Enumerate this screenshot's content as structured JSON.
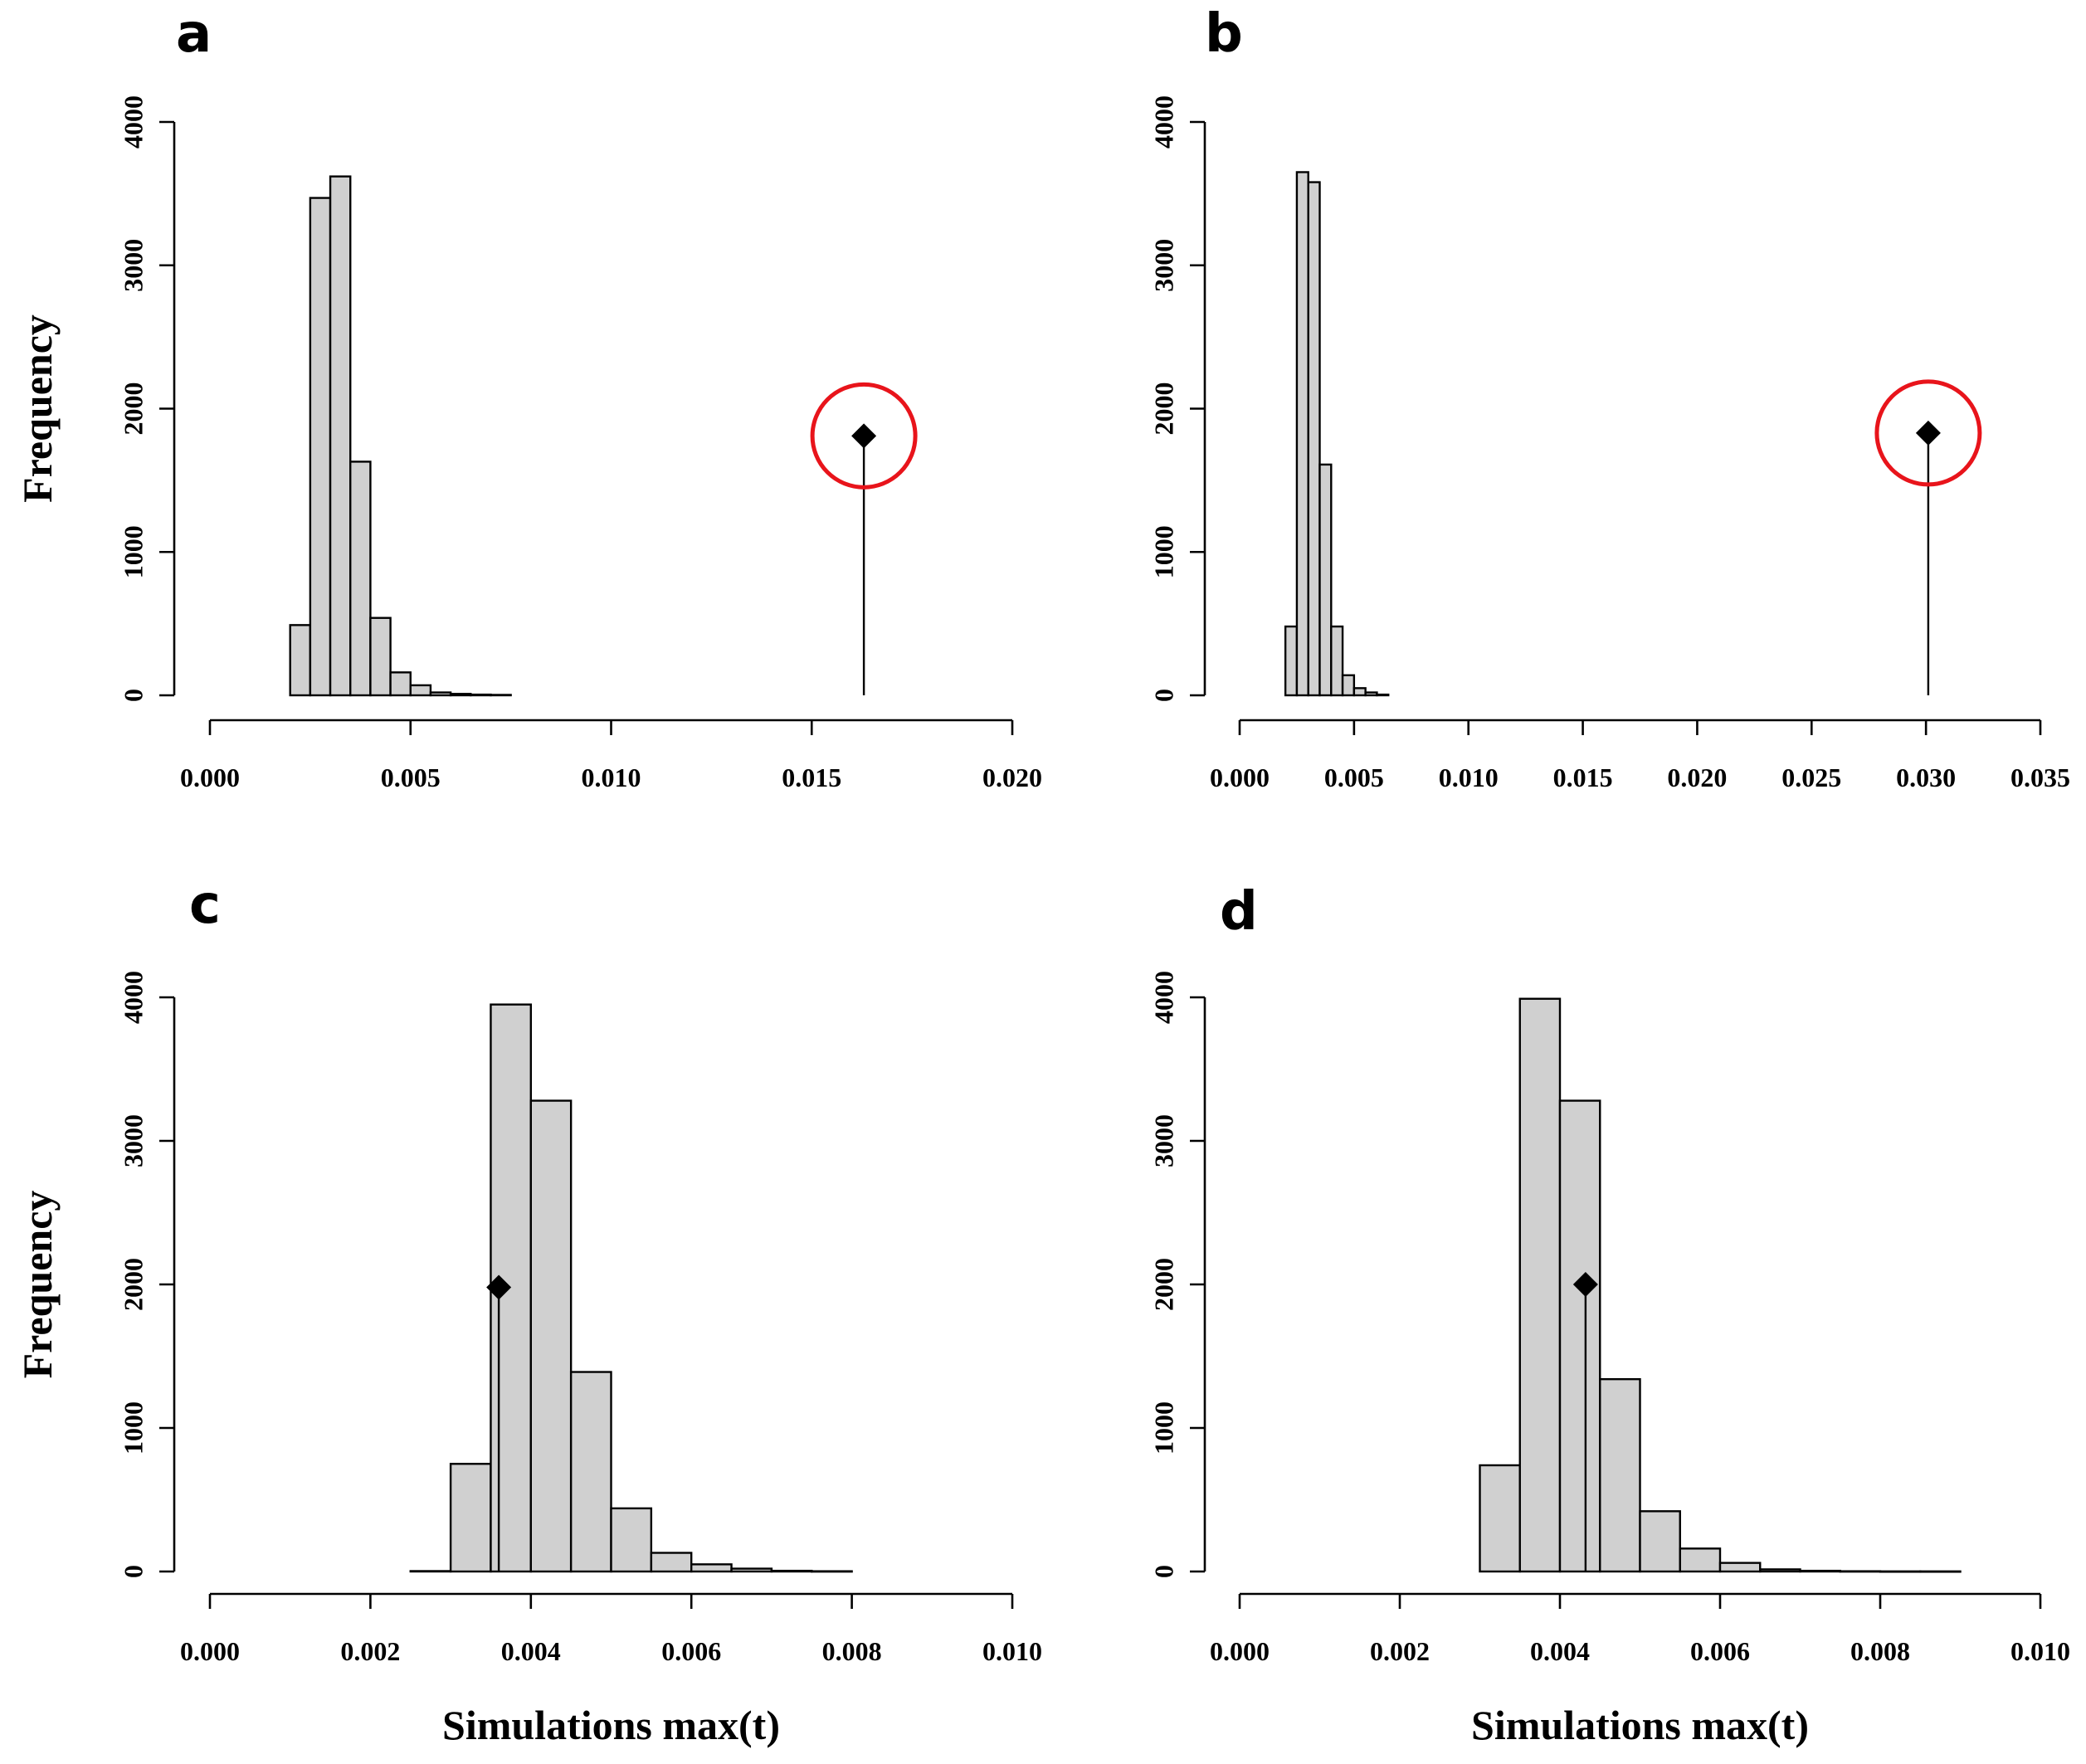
{
  "chart_data": [
    {
      "id": "a",
      "type": "bar",
      "panel_label": "a",
      "ylabel": "Frequency",
      "xlabel": "",
      "xlim": [
        0,
        0.02
      ],
      "ylim": [
        0,
        4000
      ],
      "xticks": [
        0,
        0.005,
        0.01,
        0.015,
        0.02
      ],
      "xtick_labels": [
        "0.000",
        "0.005",
        "0.010",
        "0.015",
        "0.020"
      ],
      "yticks": [
        0,
        1000,
        2000,
        3000,
        4000
      ],
      "ytick_labels": [
        "0",
        "1000",
        "2000",
        "3000",
        "4000"
      ],
      "bin_width": 0.0005,
      "bin_starts": [
        0.002,
        0.0025,
        0.003,
        0.0035,
        0.004,
        0.0045,
        0.005,
        0.0055,
        0.006,
        0.0065,
        0.007
      ],
      "values": [
        490,
        3470,
        3620,
        1630,
        540,
        160,
        70,
        20,
        10,
        5,
        3
      ],
      "observed": {
        "x": 0.0163,
        "y": 1810,
        "highlighted": true
      }
    },
    {
      "id": "b",
      "type": "bar",
      "panel_label": "b",
      "ylabel": "",
      "xlabel": "",
      "xlim": [
        0,
        0.035
      ],
      "ylim": [
        0,
        4000
      ],
      "xticks": [
        0,
        0.005,
        0.01,
        0.015,
        0.02,
        0.025,
        0.03,
        0.035
      ],
      "xtick_labels": [
        "0.000",
        "0.005",
        "0.010",
        "0.015",
        "0.020",
        "0.025",
        "0.030",
        "0.035"
      ],
      "yticks": [
        0,
        1000,
        2000,
        3000,
        4000
      ],
      "ytick_labels": [
        "0",
        "1000",
        "2000",
        "3000",
        "4000"
      ],
      "bin_width": 0.0005,
      "bin_starts": [
        0.002,
        0.0025,
        0.003,
        0.0035,
        0.004,
        0.0045,
        0.005,
        0.0055,
        0.006
      ],
      "values": [
        480,
        3650,
        3580,
        1610,
        480,
        140,
        50,
        20,
        5
      ],
      "observed": {
        "x": 0.0301,
        "y": 1830,
        "highlighted": true
      }
    },
    {
      "id": "c",
      "type": "bar",
      "panel_label": "c",
      "ylabel": "Frequency",
      "xlabel": "Simulations max(t)",
      "xlim": [
        0,
        0.01
      ],
      "ylim": [
        0,
        4000
      ],
      "xticks": [
        0,
        0.002,
        0.004,
        0.006,
        0.008,
        0.01
      ],
      "xtick_labels": [
        "0.000",
        "0.002",
        "0.004",
        "0.006",
        "0.008",
        "0.010"
      ],
      "yticks": [
        0,
        1000,
        2000,
        3000,
        4000
      ],
      "ytick_labels": [
        "0",
        "1000",
        "2000",
        "3000",
        "4000"
      ],
      "bin_width": 0.0005,
      "bin_starts": [
        0.0025,
        0.003,
        0.0035,
        0.004,
        0.0045,
        0.005,
        0.0055,
        0.006,
        0.0065,
        0.007,
        0.0075
      ],
      "values": [
        3,
        750,
        3950,
        3280,
        1390,
        440,
        130,
        50,
        20,
        5,
        2
      ],
      "observed": {
        "x": 0.0036,
        "y": 1980,
        "highlighted": false
      }
    },
    {
      "id": "d",
      "type": "bar",
      "panel_label": "d",
      "ylabel": "",
      "xlabel": "Simulations max(t)",
      "xlim": [
        0,
        0.01
      ],
      "ylim": [
        0,
        4000
      ],
      "xticks": [
        0,
        0.002,
        0.004,
        0.006,
        0.008,
        0.01
      ],
      "xtick_labels": [
        "0.000",
        "0.002",
        "0.004",
        "0.006",
        "0.008",
        "0.010"
      ],
      "yticks": [
        0,
        1000,
        2000,
        3000,
        4000
      ],
      "ytick_labels": [
        "0",
        "1000",
        "2000",
        "3000",
        "4000"
      ],
      "bin_width": 0.0005,
      "bin_starts": [
        0.003,
        0.0035,
        0.004,
        0.0045,
        0.005,
        0.0055,
        0.006,
        0.0065,
        0.007,
        0.0075,
        0.008,
        0.0085
      ],
      "values": [
        740,
        3990,
        3280,
        1340,
        420,
        160,
        60,
        15,
        5,
        2,
        1,
        1
      ],
      "observed": {
        "x": 0.00432,
        "y": 2000,
        "highlighted": false
      }
    }
  ]
}
